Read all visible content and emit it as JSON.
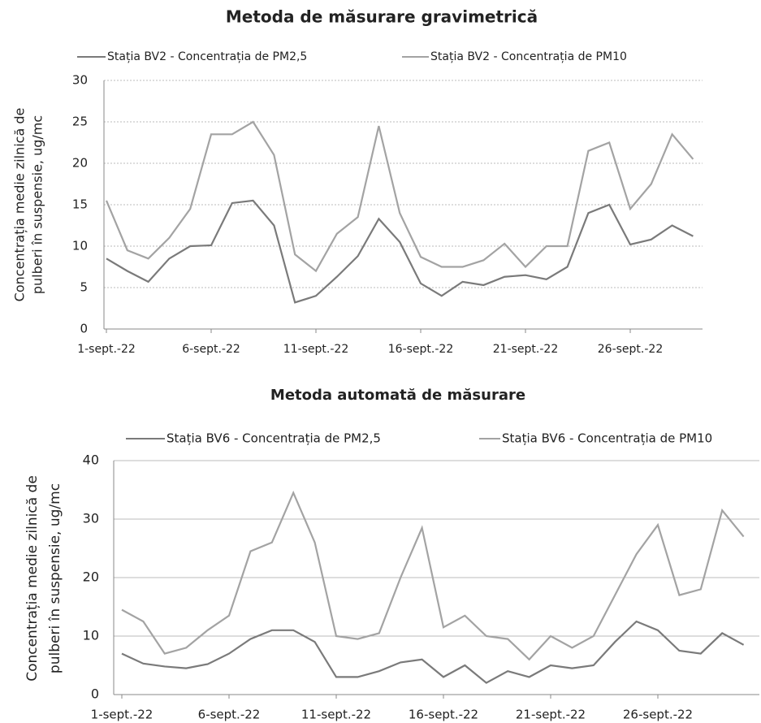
{
  "chart_data": [
    {
      "type": "line",
      "title": "Metoda de măsurare  gravimetrică",
      "y_label": [
        "Concentrația medie zilnică de",
        "pulberi în suspensie, ug/mc"
      ],
      "categories": [
        "1-sept.-22",
        null,
        null,
        null,
        null,
        "6-sept.-22",
        null,
        null,
        null,
        null,
        "11-sept.-22",
        null,
        null,
        null,
        null,
        "16-sept.-22",
        null,
        null,
        null,
        null,
        "21-sept.-22",
        null,
        null,
        null,
        null,
        "26-sept.-22",
        null,
        null,
        null
      ],
      "series": [
        {
          "name": "Stația BV2 - Concentrația de PM2,5",
          "color": "#7a7a7a",
          "values": [
            8.5,
            7,
            5.7,
            8.5,
            10,
            10.1,
            15.2,
            15.5,
            12.5,
            3.2,
            4,
            6.3,
            8.8,
            13.3,
            10.5,
            5.5,
            4,
            5.7,
            5.3,
            6.3,
            6.5,
            6,
            7.5,
            14,
            15,
            10.2,
            10.8,
            12.5,
            11.2
          ]
        },
        {
          "name": "Stația BV2 - Concentrația de PM10",
          "color": "#a3a3a3",
          "values": [
            15.5,
            9.5,
            8.5,
            11,
            14.5,
            23.5,
            23.5,
            25,
            21,
            9,
            7,
            11.5,
            13.5,
            24.5,
            14,
            8.7,
            7.5,
            7.5,
            8.3,
            10.3,
            7.5,
            10,
            10,
            21.5,
            22.5,
            14.5,
            17.5,
            23.5,
            20.5
          ]
        }
      ],
      "ylim": [
        0,
        30
      ],
      "yticks": [
        0,
        5,
        10,
        15,
        20,
        25,
        30
      ],
      "grid": true
    },
    {
      "type": "line",
      "title": "Metoda automată de măsurare",
      "y_label": [
        "Concentrația medie zilnică de",
        "pulberi în suspensie, ug/mc"
      ],
      "categories": [
        "1-sept.-22",
        null,
        null,
        null,
        null,
        "6-sept.-22",
        null,
        null,
        null,
        null,
        "11-sept.-22",
        null,
        null,
        null,
        null,
        "16-sept.-22",
        null,
        null,
        null,
        null,
        "21-sept.-22",
        null,
        null,
        null,
        null,
        "26-sept.-22",
        null,
        null,
        null,
        null
      ],
      "series": [
        {
          "name": "Stația BV6 - Concentrația de PM2,5",
          "color": "#7a7a7a",
          "values": [
            7,
            5.3,
            4.8,
            4.5,
            5.2,
            7,
            9.5,
            11,
            11,
            9,
            3,
            3,
            4,
            5.5,
            6,
            3,
            5,
            2,
            4,
            3,
            5,
            4.5,
            5,
            9,
            12.5,
            11,
            7.5,
            7,
            10.5,
            8.5
          ]
        },
        {
          "name": "Stația BV6 - Concentrația de PM10",
          "color": "#a3a3a3",
          "values": [
            14.5,
            12.5,
            7,
            8,
            11,
            13.5,
            24.5,
            26,
            34.5,
            26,
            10,
            9.5,
            10.5,
            20,
            28.5,
            11.5,
            13.5,
            10,
            9.5,
            6,
            10,
            8,
            10,
            17,
            24,
            29,
            17,
            18,
            31.5,
            27
          ]
        }
      ],
      "ylim": [
        0,
        40
      ],
      "yticks": [
        0,
        10,
        20,
        30,
        40
      ],
      "grid": true
    }
  ]
}
